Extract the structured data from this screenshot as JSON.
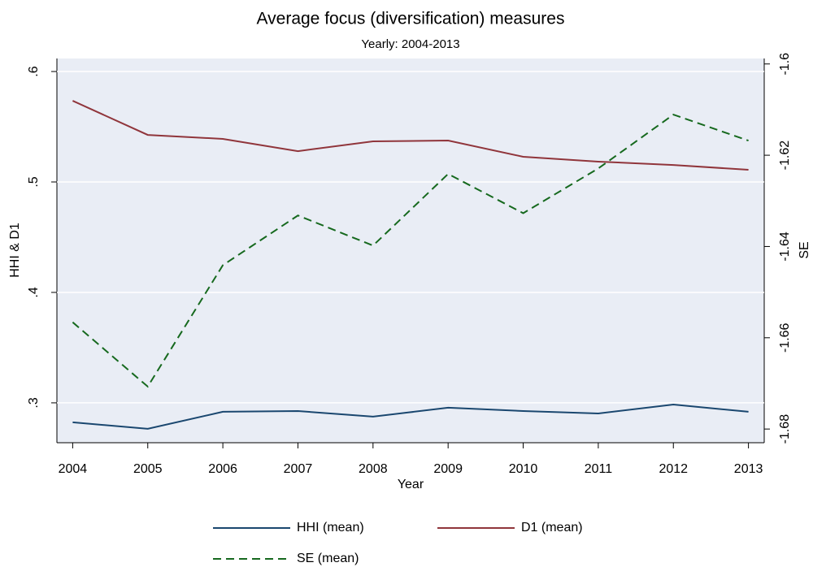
{
  "chart_data": {
    "type": "line",
    "title": "Average focus (diversification) measures",
    "subtitle": "Yearly: 2004-2013",
    "xlabel": "Year",
    "ylabel": "HHI & D1",
    "y2label": "SE",
    "x": [
      2004,
      2005,
      2006,
      2007,
      2008,
      2009,
      2010,
      2011,
      2012,
      2013
    ],
    "xlim": [
      2003.79,
      2013.21
    ],
    "xticks": [
      2004,
      2005,
      2006,
      2007,
      2008,
      2009,
      2010,
      2011,
      2012,
      2013
    ],
    "ylim": [
      0.2639,
      0.6118
    ],
    "yticks": [
      {
        "value": 0.3,
        "label": ".3"
      },
      {
        "value": 0.4,
        "label": ".4"
      },
      {
        "value": 0.5,
        "label": ".5"
      },
      {
        "value": 0.6,
        "label": ".6"
      }
    ],
    "y2lim": [
      -1.683,
      -1.5988
    ],
    "y2ticks": [
      -1.68,
      -1.66,
      -1.64,
      -1.62,
      -1.6
    ],
    "grid": true,
    "legend": "bottom",
    "series": [
      {
        "name": "HHI (mean)",
        "color": "#1a476f",
        "dashed": false,
        "values": [
          0.2824,
          0.2765,
          0.2919,
          0.2926,
          0.2875,
          0.2956,
          0.2926,
          0.2904,
          0.2985,
          0.2919
        ]
      },
      {
        "name": "D1 (mean)",
        "color": "#90353b",
        "dashed": false,
        "values": [
          0.5735,
          0.5426,
          0.539,
          0.5279,
          0.5368,
          0.5375,
          0.5228,
          0.5184,
          0.5154,
          0.511
        ]
      },
      {
        "name": "SE (mean)",
        "color": "#16691e",
        "dashed": true,
        "axis": "y2",
        "values": [
          -1.6566,
          -1.6707,
          -1.6441,
          -1.6332,
          -1.6398,
          -1.6241,
          -1.6327,
          -1.6229,
          -1.6111,
          -1.6168
        ]
      }
    ]
  }
}
